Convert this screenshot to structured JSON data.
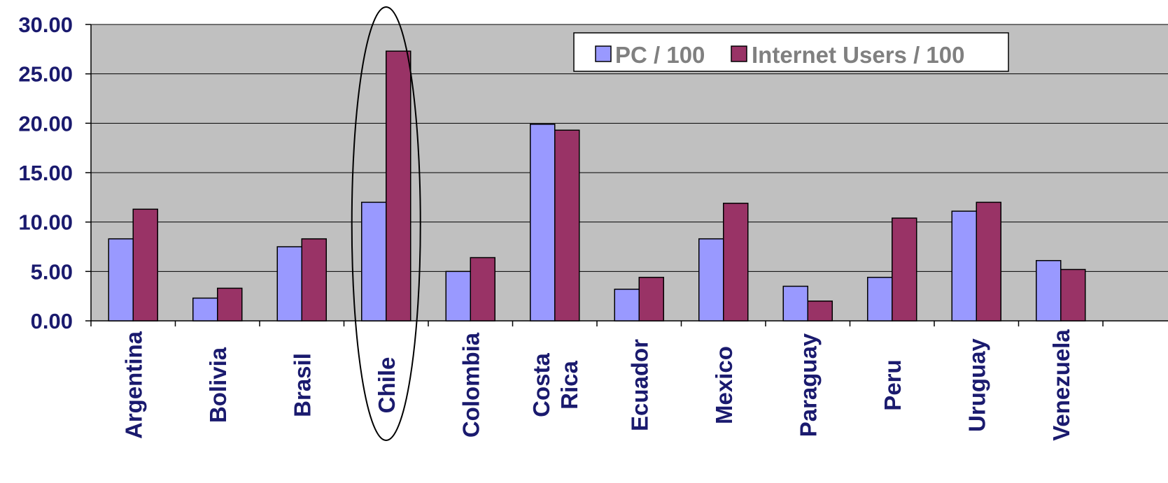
{
  "chart_data": {
    "type": "bar",
    "categories": [
      "Argentina",
      "Bolivia",
      "Brasil",
      "Chile",
      "Colombia",
      "Costa Rica",
      "Ecuador",
      "Mexico",
      "Paraguay",
      "Peru",
      "Uruguay",
      "Venezuela"
    ],
    "category_lines": [
      [
        "Argentina"
      ],
      [
        "Bolivia"
      ],
      [
        "Brasil"
      ],
      [
        "Chile"
      ],
      [
        "Colombia"
      ],
      [
        "Costa",
        "Rica"
      ],
      [
        "Ecuador"
      ],
      [
        "Mexico"
      ],
      [
        "Paraguay"
      ],
      [
        "Peru"
      ],
      [
        "Uruguay"
      ],
      [
        "Venezuela"
      ]
    ],
    "series": [
      {
        "name": "PC / 100",
        "color": "#9999ff",
        "values": [
          8.3,
          2.3,
          7.5,
          12.0,
          5.0,
          19.9,
          3.2,
          8.3,
          3.5,
          4.4,
          11.1,
          6.1
        ]
      },
      {
        "name": "Internet Users / 100",
        "color": "#993366",
        "values": [
          11.3,
          3.3,
          8.3,
          27.3,
          6.4,
          19.3,
          4.4,
          11.9,
          2.0,
          10.4,
          12.0,
          5.2
        ]
      }
    ],
    "y_ticks": [
      "0.00",
      "5.00",
      "10.00",
      "15.00",
      "20.00",
      "25.00",
      "30.00"
    ],
    "ylim": [
      0,
      30
    ],
    "title": "",
    "xlabel": "",
    "ylabel": "",
    "grid": true,
    "plot_background": "#c0c0c0",
    "legend_position": "top-right",
    "highlighted_category": "Chile"
  }
}
